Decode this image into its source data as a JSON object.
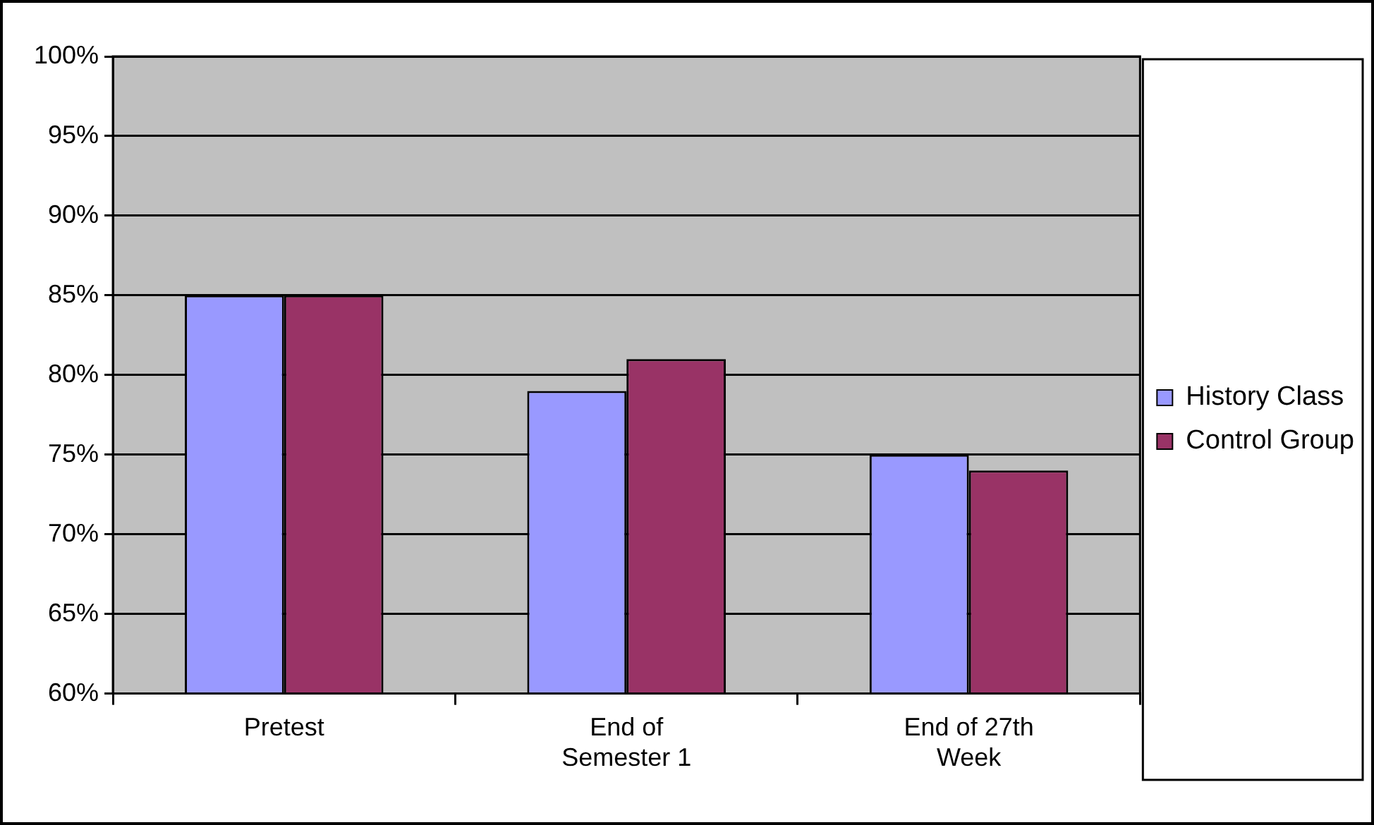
{
  "chart_data": {
    "type": "bar",
    "categories": [
      "Pretest",
      "End of Semester 1",
      "End of 27th Week"
    ],
    "series": [
      {
        "name": "History Class",
        "color": "#9999ff",
        "values": [
          85,
          79,
          75
        ]
      },
      {
        "name": "Control Group",
        "color": "#993366",
        "values": [
          85,
          81,
          74
        ]
      }
    ],
    "ylim": [
      60,
      100
    ],
    "yticks": [
      {
        "value": 60,
        "label": "60%"
      },
      {
        "value": 65,
        "label": "65%"
      },
      {
        "value": 70,
        "label": "70%"
      },
      {
        "value": 75,
        "label": "75%"
      },
      {
        "value": 80,
        "label": "80%"
      },
      {
        "value": 85,
        "label": "85%"
      },
      {
        "value": 90,
        "label": "90%"
      },
      {
        "value": 95,
        "label": "95%"
      },
      {
        "value": 100,
        "label": "100%"
      }
    ],
    "grid": "y",
    "legend": "right"
  }
}
